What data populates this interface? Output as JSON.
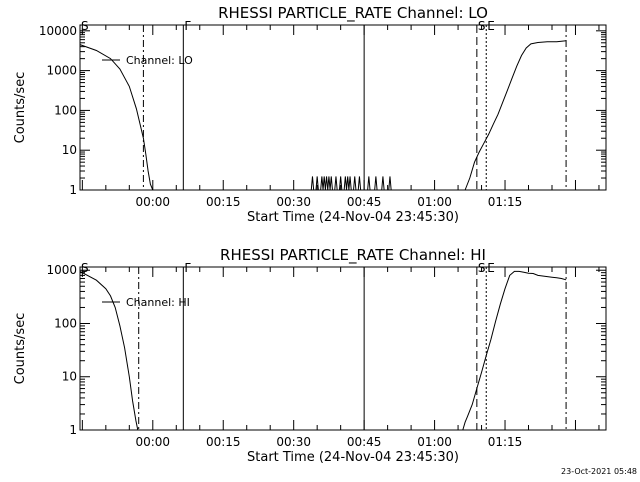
{
  "footer": {
    "timestamp": "23-Oct-2021 05:48"
  },
  "chart_data": [
    {
      "type": "line",
      "title": "RHESSI PARTICLE_RATE Channel: LO",
      "xlabel": "Start Time (24-Nov-04 23:45:30)",
      "ylabel": "Counts/sec",
      "yscale": "log",
      "xlim": [
        -15.5,
        96.5
      ],
      "ylim": [
        1,
        14000
      ],
      "x_ticks": [
        {
          "v": 0,
          "label": "00:00"
        },
        {
          "v": 15,
          "label": "00:15"
        },
        {
          "v": 30,
          "label": "00:30"
        },
        {
          "v": 45,
          "label": "00:45"
        },
        {
          "v": 60,
          "label": "01:00"
        },
        {
          "v": 75,
          "label": "01:15"
        }
      ],
      "y_ticks": [
        {
          "v": 1,
          "label": "1"
        },
        {
          "v": 10,
          "label": "10"
        },
        {
          "v": 100,
          "label": "100"
        },
        {
          "v": 1000,
          "label": "1000"
        },
        {
          "v": 10000,
          "label": "10000"
        }
      ],
      "legend": {
        "label": "Channel: LO",
        "placement": "top-left"
      },
      "series": [
        {
          "name": "Channel: LO",
          "x": [
            -15.5,
            -12,
            -9,
            -7,
            -5,
            -3.5,
            -2,
            -1.5,
            -1,
            -0.5,
            0
          ],
          "y": [
            4500,
            3200,
            2000,
            1100,
            400,
            110,
            20,
            8,
            3,
            1.4,
            1
          ]
        },
        {
          "name": "Channel: LO",
          "x": [
            66.5,
            67.5,
            68.5,
            69.5,
            70.5,
            71.5,
            72.5,
            73.5,
            74.5,
            75.5,
            76.5,
            77.5,
            78.5,
            79.5,
            80.5,
            82,
            84,
            86,
            88
          ],
          "y": [
            1,
            2,
            5,
            9,
            15,
            25,
            45,
            80,
            160,
            320,
            650,
            1300,
            2400,
            3700,
            4700,
            5100,
            5300,
            5300,
            5600
          ]
        }
      ],
      "spikes": [
        34,
        35,
        36,
        36.5,
        37,
        37.5,
        38,
        39,
        40,
        41,
        41.5,
        42,
        43,
        44,
        46,
        47.5,
        49,
        50.5
      ],
      "spike_height": 2.2,
      "markers": [
        {
          "label": "S",
          "x": -15.5,
          "style": "dashdot"
        },
        {
          "label": "",
          "x": -2,
          "style": "dashdot"
        },
        {
          "label": "F",
          "x": 6.5,
          "style": "solid"
        },
        {
          "label": "",
          "x": 45,
          "style": "solid"
        },
        {
          "label": "S",
          "x": 69,
          "style": "dashed"
        },
        {
          "label": "E",
          "x": 71,
          "style": "dotted"
        },
        {
          "label": "",
          "x": 88,
          "style": "dashdot"
        }
      ]
    },
    {
      "type": "line",
      "title": "RHESSI PARTICLE_RATE Channel: HI",
      "xlabel": "Start Time (24-Nov-04 23:45:30)",
      "ylabel": "Counts/sec",
      "yscale": "log",
      "xlim": [
        -15.5,
        96.5
      ],
      "ylim": [
        1,
        1150
      ],
      "x_ticks": [
        {
          "v": 0,
          "label": "00:00"
        },
        {
          "v": 15,
          "label": "00:15"
        },
        {
          "v": 30,
          "label": "00:30"
        },
        {
          "v": 45,
          "label": "00:45"
        },
        {
          "v": 60,
          "label": "01:00"
        },
        {
          "v": 75,
          "label": "01:15"
        }
      ],
      "y_ticks": [
        {
          "v": 1,
          "label": "1"
        },
        {
          "v": 10,
          "label": "10"
        },
        {
          "v": 100,
          "label": "100"
        },
        {
          "v": 1000,
          "label": "1000"
        }
      ],
      "legend": {
        "label": "Channel: HI",
        "placement": "top-left"
      },
      "series": [
        {
          "name": "Channel: HI",
          "x": [
            -15.5,
            -12,
            -10,
            -9,
            -8,
            -7,
            -6,
            -5,
            -4.3,
            -3.6,
            -3.2
          ],
          "y": [
            950,
            650,
            450,
            330,
            200,
            90,
            35,
            10,
            3.5,
            1.5,
            1
          ]
        },
        {
          "name": "Channel: HI",
          "x": [
            66,
            66.5,
            67,
            68,
            69,
            70,
            71,
            72,
            73,
            74,
            75,
            76,
            77,
            78,
            79,
            80,
            81,
            82,
            83,
            84,
            85,
            86,
            87,
            88
          ],
          "y": [
            1,
            1.4,
            1.8,
            3,
            6,
            12,
            25,
            50,
            110,
            230,
            450,
            800,
            950,
            950,
            920,
            880,
            870,
            800,
            780,
            760,
            740,
            720,
            700,
            660
          ]
        }
      ],
      "spikes": [],
      "spike_height": 1,
      "markers": [
        {
          "label": "S",
          "x": -15.5,
          "style": "dashdot"
        },
        {
          "label": "",
          "x": -3,
          "style": "dashdot"
        },
        {
          "label": "F",
          "x": 6.5,
          "style": "solid"
        },
        {
          "label": "",
          "x": 45,
          "style": "solid"
        },
        {
          "label": "S",
          "x": 69,
          "style": "dashed"
        },
        {
          "label": "E",
          "x": 71,
          "style": "dotted"
        },
        {
          "label": "",
          "x": 88,
          "style": "dashdot"
        }
      ]
    }
  ]
}
